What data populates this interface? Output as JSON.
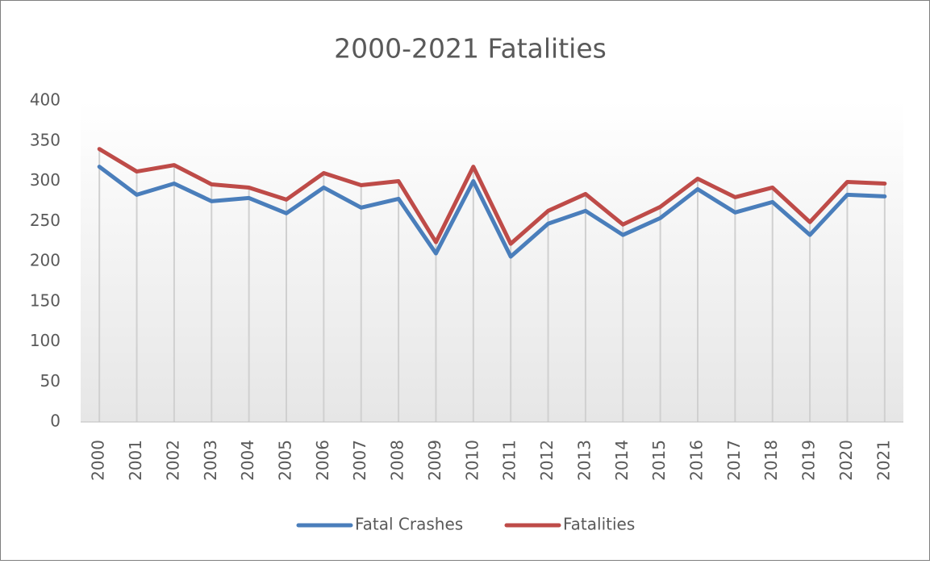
{
  "chart_data": {
    "type": "line",
    "title": "2000-2021 Fatalities",
    "categories": [
      "2000",
      "2001",
      "2002",
      "2003",
      "2004",
      "2005",
      "2006",
      "2007",
      "2008",
      "2009",
      "2010",
      "2011",
      "2012",
      "2013",
      "2014",
      "2015",
      "2016",
      "2017",
      "2018",
      "2019",
      "2020",
      "2021"
    ],
    "series": [
      {
        "name": "Fatal Crashes",
        "color": "#4a7ebb",
        "values": [
          318,
          283,
          297,
          275,
          279,
          260,
          292,
          267,
          278,
          210,
          300,
          206,
          247,
          263,
          233,
          254,
          290,
          261,
          274,
          233,
          283,
          281
        ]
      },
      {
        "name": "Fatalities",
        "color": "#be4b48",
        "values": [
          340,
          312,
          320,
          296,
          292,
          277,
          310,
          295,
          300,
          224,
          318,
          222,
          263,
          284,
          246,
          268,
          303,
          280,
          292,
          249,
          299,
          297
        ]
      }
    ],
    "ylim": [
      0,
      400
    ],
    "yticks": [
      0,
      50,
      100,
      150,
      200,
      250,
      300,
      350,
      400
    ],
    "drop_lines": true,
    "legend": "bottom"
  }
}
